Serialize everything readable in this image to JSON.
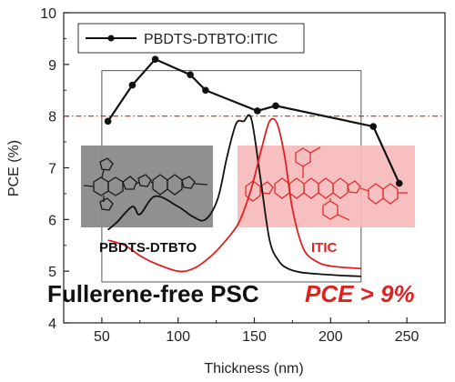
{
  "chart_data": {
    "type": "line",
    "xlabel": "Thickness (nm)",
    "ylabel": "PCE (%)",
    "xlim": [
      25,
      275
    ],
    "ylim": [
      4,
      10
    ],
    "xticks": [
      50,
      100,
      150,
      200,
      250
    ],
    "yticks": [
      4,
      5,
      6,
      7,
      8,
      9,
      10
    ],
    "grid": false,
    "legend_position": "top-left",
    "series": [
      {
        "name": "PBDTS-DTBTO:ITIC",
        "color": "#111111",
        "marker": "circle",
        "x": [
          54,
          70,
          85,
          108,
          118,
          152,
          164,
          228,
          245
        ],
        "y": [
          7.9,
          8.6,
          9.1,
          8.8,
          8.5,
          8.1,
          8.2,
          7.8,
          6.7
        ]
      }
    ],
    "reference_line": {
      "y": 8.0,
      "color": "#cc2222",
      "style": "dash-dot"
    },
    "inset": {
      "xlim": [
        50,
        220
      ],
      "black_curve": {
        "color": "#111111",
        "x": [
          54,
          60,
          70,
          75,
          85,
          100,
          110,
          118,
          126,
          132,
          138,
          143,
          148,
          154,
          160,
          166,
          172,
          180,
          190,
          205,
          220
        ],
        "y": [
          5.8,
          5.95,
          6.25,
          6.1,
          6.45,
          6.25,
          6.05,
          6.0,
          6.4,
          7.2,
          7.85,
          7.9,
          7.95,
          6.8,
          5.6,
          5.2,
          5.05,
          4.98,
          4.95,
          4.92,
          4.9
        ]
      },
      "red_curve": {
        "color": "#dd2222",
        "x": [
          54,
          65,
          75,
          85,
          100,
          110,
          120,
          130,
          140,
          148,
          155,
          160,
          165,
          170,
          175,
          182,
          190,
          200,
          220
        ],
        "y": [
          5.6,
          5.5,
          5.3,
          5.15,
          5.0,
          5.05,
          5.25,
          5.55,
          5.95,
          6.6,
          7.4,
          7.9,
          7.85,
          7.2,
          6.2,
          5.45,
          5.2,
          5.1,
          5.05
        ]
      }
    },
    "annotations": {
      "donor_label": "PBDTS-DTBTO",
      "acceptor_label": "ITIC",
      "headline": "Fullerene-free PSC",
      "headline_pce": "PCE > 9%"
    },
    "colors": {
      "donor_box": "#8a8a8a",
      "acceptor_box": "#f6b8b8",
      "headline_pce": "#dd2222"
    }
  }
}
